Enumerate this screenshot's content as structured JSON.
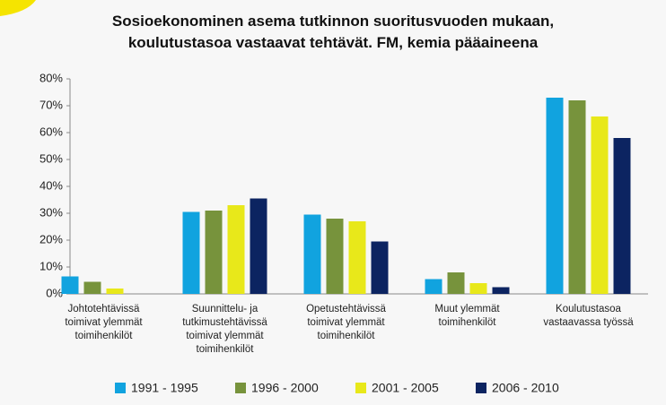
{
  "chart_data": {
    "type": "bar",
    "title": "Sosioekonominen asema tutkinnon suoritusvuoden mukaan,\nkoulutustasoa vastaavat tehtävät. FM, kemia pääaineena",
    "categories": [
      "Johtotehtävissä\ntoimivat ylemmät\ntoimihenkilöt",
      "Suunnittelu- ja\ntutkimustehtävissä\ntoimivat ylemmät\ntoimihenkilöt",
      "Opetustehtävissä\ntoimivat ylemmät\ntoimihenkilöt",
      "Muut ylemmät\ntoimihenkilöt",
      "Koulutustasoa\nvastaavassa työssä"
    ],
    "series": [
      {
        "name": "1991 - 1995",
        "color": "#11a3df",
        "values": [
          6.5,
          30.5,
          29.5,
          5.5,
          73
        ]
      },
      {
        "name": "1996 - 2000",
        "color": "#77933c",
        "values": [
          4.5,
          31,
          28,
          8,
          72
        ]
      },
      {
        "name": "2001 - 2005",
        "color": "#e8e81a",
        "values": [
          2,
          33,
          27,
          4,
          66
        ]
      },
      {
        "name": "2006 - 2010",
        "color": "#0c2461",
        "values": [
          0,
          35.5,
          19.5,
          2.5,
          58
        ]
      }
    ],
    "ylim": [
      0,
      80
    ],
    "yticks": [
      {
        "value": 0,
        "label": "0%"
      },
      {
        "value": 10,
        "label": "10%"
      },
      {
        "value": 20,
        "label": "20%"
      },
      {
        "value": 30,
        "label": "30%"
      },
      {
        "value": 40,
        "label": "40%"
      },
      {
        "value": 50,
        "label": "50%"
      },
      {
        "value": 60,
        "label": "60%"
      },
      {
        "value": 70,
        "label": "70%"
      },
      {
        "value": 80,
        "label": "80%"
      }
    ],
    "legend": "bottom"
  }
}
